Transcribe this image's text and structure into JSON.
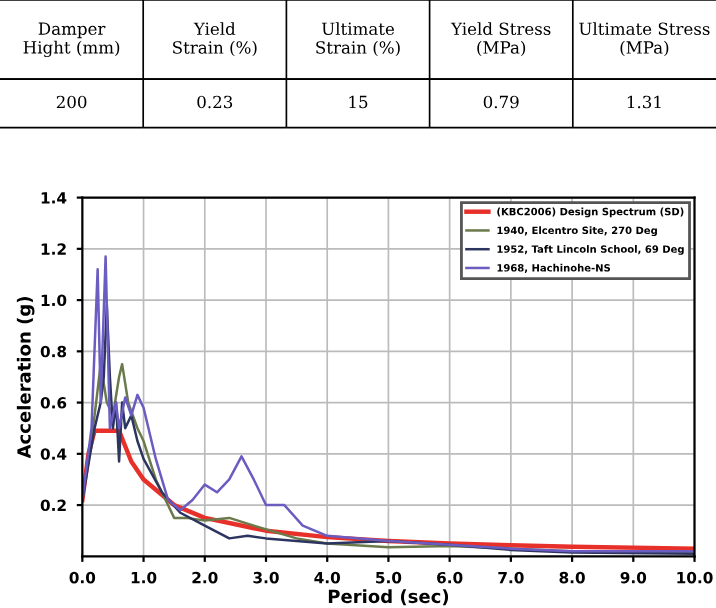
{
  "chart_data": [
    {
      "type": "other",
      "annotations": [
        "Damper\nHight (mm)",
        "Yield\nStrain (%)",
        "Ultimate\nStrain (%)",
        "Yield Stress\n(MPa)",
        "Ultimate Stress\n(MPa)",
        "200",
        "0.23",
        "15",
        "0.79",
        "1.31"
      ]
    },
    {
      "type": "line",
      "xlabel": "Period (sec)",
      "ylabel": "Acceleration (g)",
      "xlim": [
        0,
        10
      ],
      "ylim": [
        0,
        1.4
      ],
      "xticks": [
        {
          "value": 0,
          "label": "0.0"
        },
        {
          "value": 1,
          "label": "1.0"
        },
        {
          "value": 2,
          "label": "2.0"
        },
        {
          "value": 3,
          "label": "3.0"
        },
        {
          "value": 4,
          "label": "4.0"
        },
        {
          "value": 5,
          "label": "5.0"
        },
        {
          "value": 6,
          "label": "6.0"
        },
        {
          "value": 7,
          "label": "7.0"
        },
        {
          "value": 8,
          "label": "8.0"
        },
        {
          "value": 9,
          "label": "9.0"
        },
        {
          "value": 10,
          "label": "10.0"
        }
      ],
      "yticks": [
        0.2,
        0.4,
        0.6,
        0.8,
        {
          "value": 1.0,
          "label": "1.0"
        },
        1.2,
        1.4
      ],
      "grid": true,
      "legend": "top right",
      "marker": "none",
      "series": [
        {
          "name": "(KBC2006) Design Spectrum (SD)",
          "color": "#e8302a",
          "x": [
            0,
            0.1,
            0.2,
            0.6,
            0.8,
            1.0,
            1.5,
            2.0,
            3.0,
            4.0,
            5.0,
            6.0,
            7.0,
            8.0,
            10.0
          ],
          "values": [
            0.22,
            0.4,
            0.49,
            0.49,
            0.37,
            0.3,
            0.2,
            0.15,
            0.1,
            0.075,
            0.06,
            0.05,
            0.043,
            0.037,
            0.03
          ]
        },
        {
          "name": "1940, Elcentro Site, 270 Deg",
          "color": "#6b7a4a",
          "x": [
            0,
            0.2,
            0.3,
            0.4,
            0.5,
            0.6,
            0.65,
            0.75,
            0.9,
            1.0,
            1.2,
            1.5,
            1.7,
            2.0,
            2.4,
            2.8,
            3.5,
            4.0,
            5.0,
            6.0,
            7.0,
            8.0,
            10.0
          ],
          "values": [
            0.22,
            0.55,
            0.75,
            0.6,
            0.55,
            0.7,
            0.75,
            0.6,
            0.5,
            0.45,
            0.3,
            0.15,
            0.15,
            0.14,
            0.15,
            0.12,
            0.07,
            0.05,
            0.035,
            0.04,
            0.03,
            0.02,
            0.015
          ]
        },
        {
          "name": "1952, Taft Lincoln School, 69 Deg",
          "color": "#2c3560",
          "x": [
            0,
            0.2,
            0.3,
            0.35,
            0.4,
            0.45,
            0.5,
            0.55,
            0.6,
            0.65,
            0.7,
            0.8,
            0.9,
            1.0,
            1.3,
            1.6,
            2.0,
            2.4,
            2.7,
            3.0,
            3.5,
            4.0,
            5.0,
            6.0,
            7.0,
            8.0,
            10.0
          ],
          "values": [
            0.22,
            0.5,
            0.6,
            0.7,
            0.98,
            0.7,
            0.5,
            0.6,
            0.37,
            0.6,
            0.5,
            0.55,
            0.45,
            0.38,
            0.25,
            0.17,
            0.12,
            0.07,
            0.08,
            0.07,
            0.06,
            0.05,
            0.06,
            0.045,
            0.025,
            0.015,
            0.01
          ]
        },
        {
          "name": "1968, Hachinohe-NS",
          "color": "#6a5cc0",
          "x": [
            0,
            0.15,
            0.25,
            0.3,
            0.38,
            0.45,
            0.55,
            0.6,
            0.7,
            0.8,
            0.9,
            1.0,
            1.2,
            1.4,
            1.6,
            1.8,
            2.0,
            2.2,
            2.4,
            2.6,
            2.8,
            3.0,
            3.3,
            3.6,
            4.0,
            5.0,
            6.0,
            7.0,
            8.0,
            10.0
          ],
          "values": [
            0.22,
            0.5,
            1.12,
            0.6,
            1.17,
            0.5,
            0.6,
            0.5,
            0.62,
            0.55,
            0.63,
            0.58,
            0.38,
            0.22,
            0.18,
            0.22,
            0.28,
            0.25,
            0.3,
            0.39,
            0.3,
            0.2,
            0.2,
            0.12,
            0.08,
            0.06,
            0.045,
            0.03,
            0.02,
            0.02
          ]
        }
      ]
    }
  ]
}
